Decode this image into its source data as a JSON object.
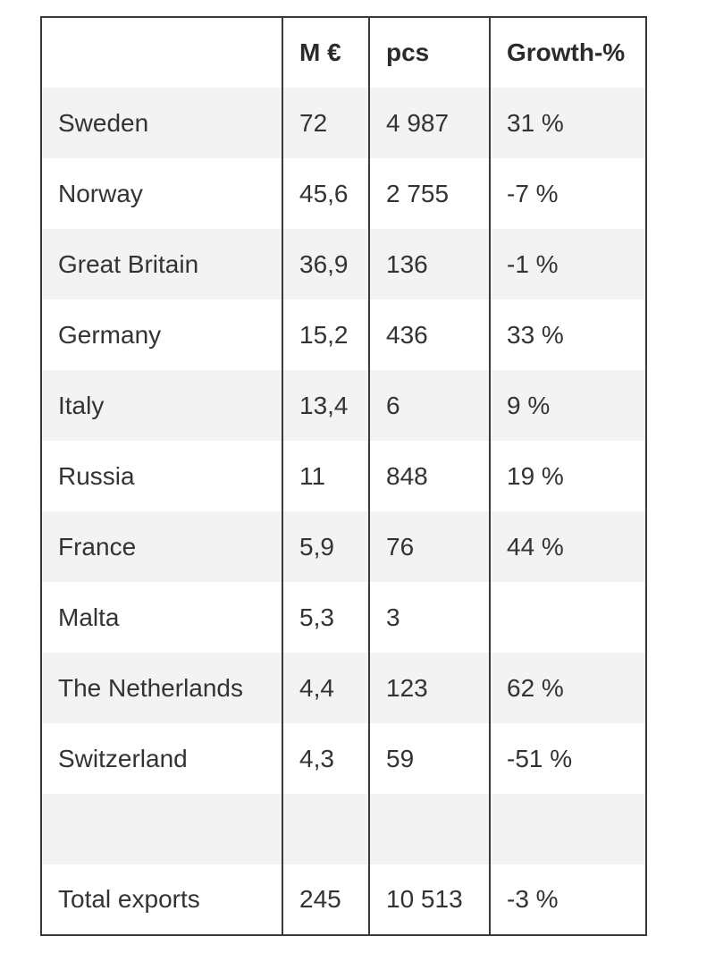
{
  "table": {
    "headers": [
      "",
      "M €",
      "pcs",
      "Growth-%"
    ],
    "rows": [
      [
        "Sweden",
        "72",
        "4 987",
        "31 %"
      ],
      [
        "Norway",
        "45,6",
        "2 755",
        "-7 %"
      ],
      [
        "Great Britain",
        "36,9",
        "136",
        "-1 %"
      ],
      [
        "Germany",
        "15,2",
        "436",
        "33 %"
      ],
      [
        "Italy",
        "13,4",
        "6",
        "9 %"
      ],
      [
        "Russia",
        "11",
        "848",
        "19 %"
      ],
      [
        "France",
        "5,9",
        "76",
        "44 %"
      ],
      [
        "Malta",
        "5,3",
        "3",
        ""
      ],
      [
        "The Netherlands",
        "4,4",
        "123",
        "62 %"
      ],
      [
        "Switzerland",
        "4,3",
        "59",
        "-51 %"
      ],
      [
        "",
        "",
        "",
        ""
      ],
      [
        "Total exports",
        "245",
        "10 513",
        "-3 %"
      ]
    ]
  }
}
